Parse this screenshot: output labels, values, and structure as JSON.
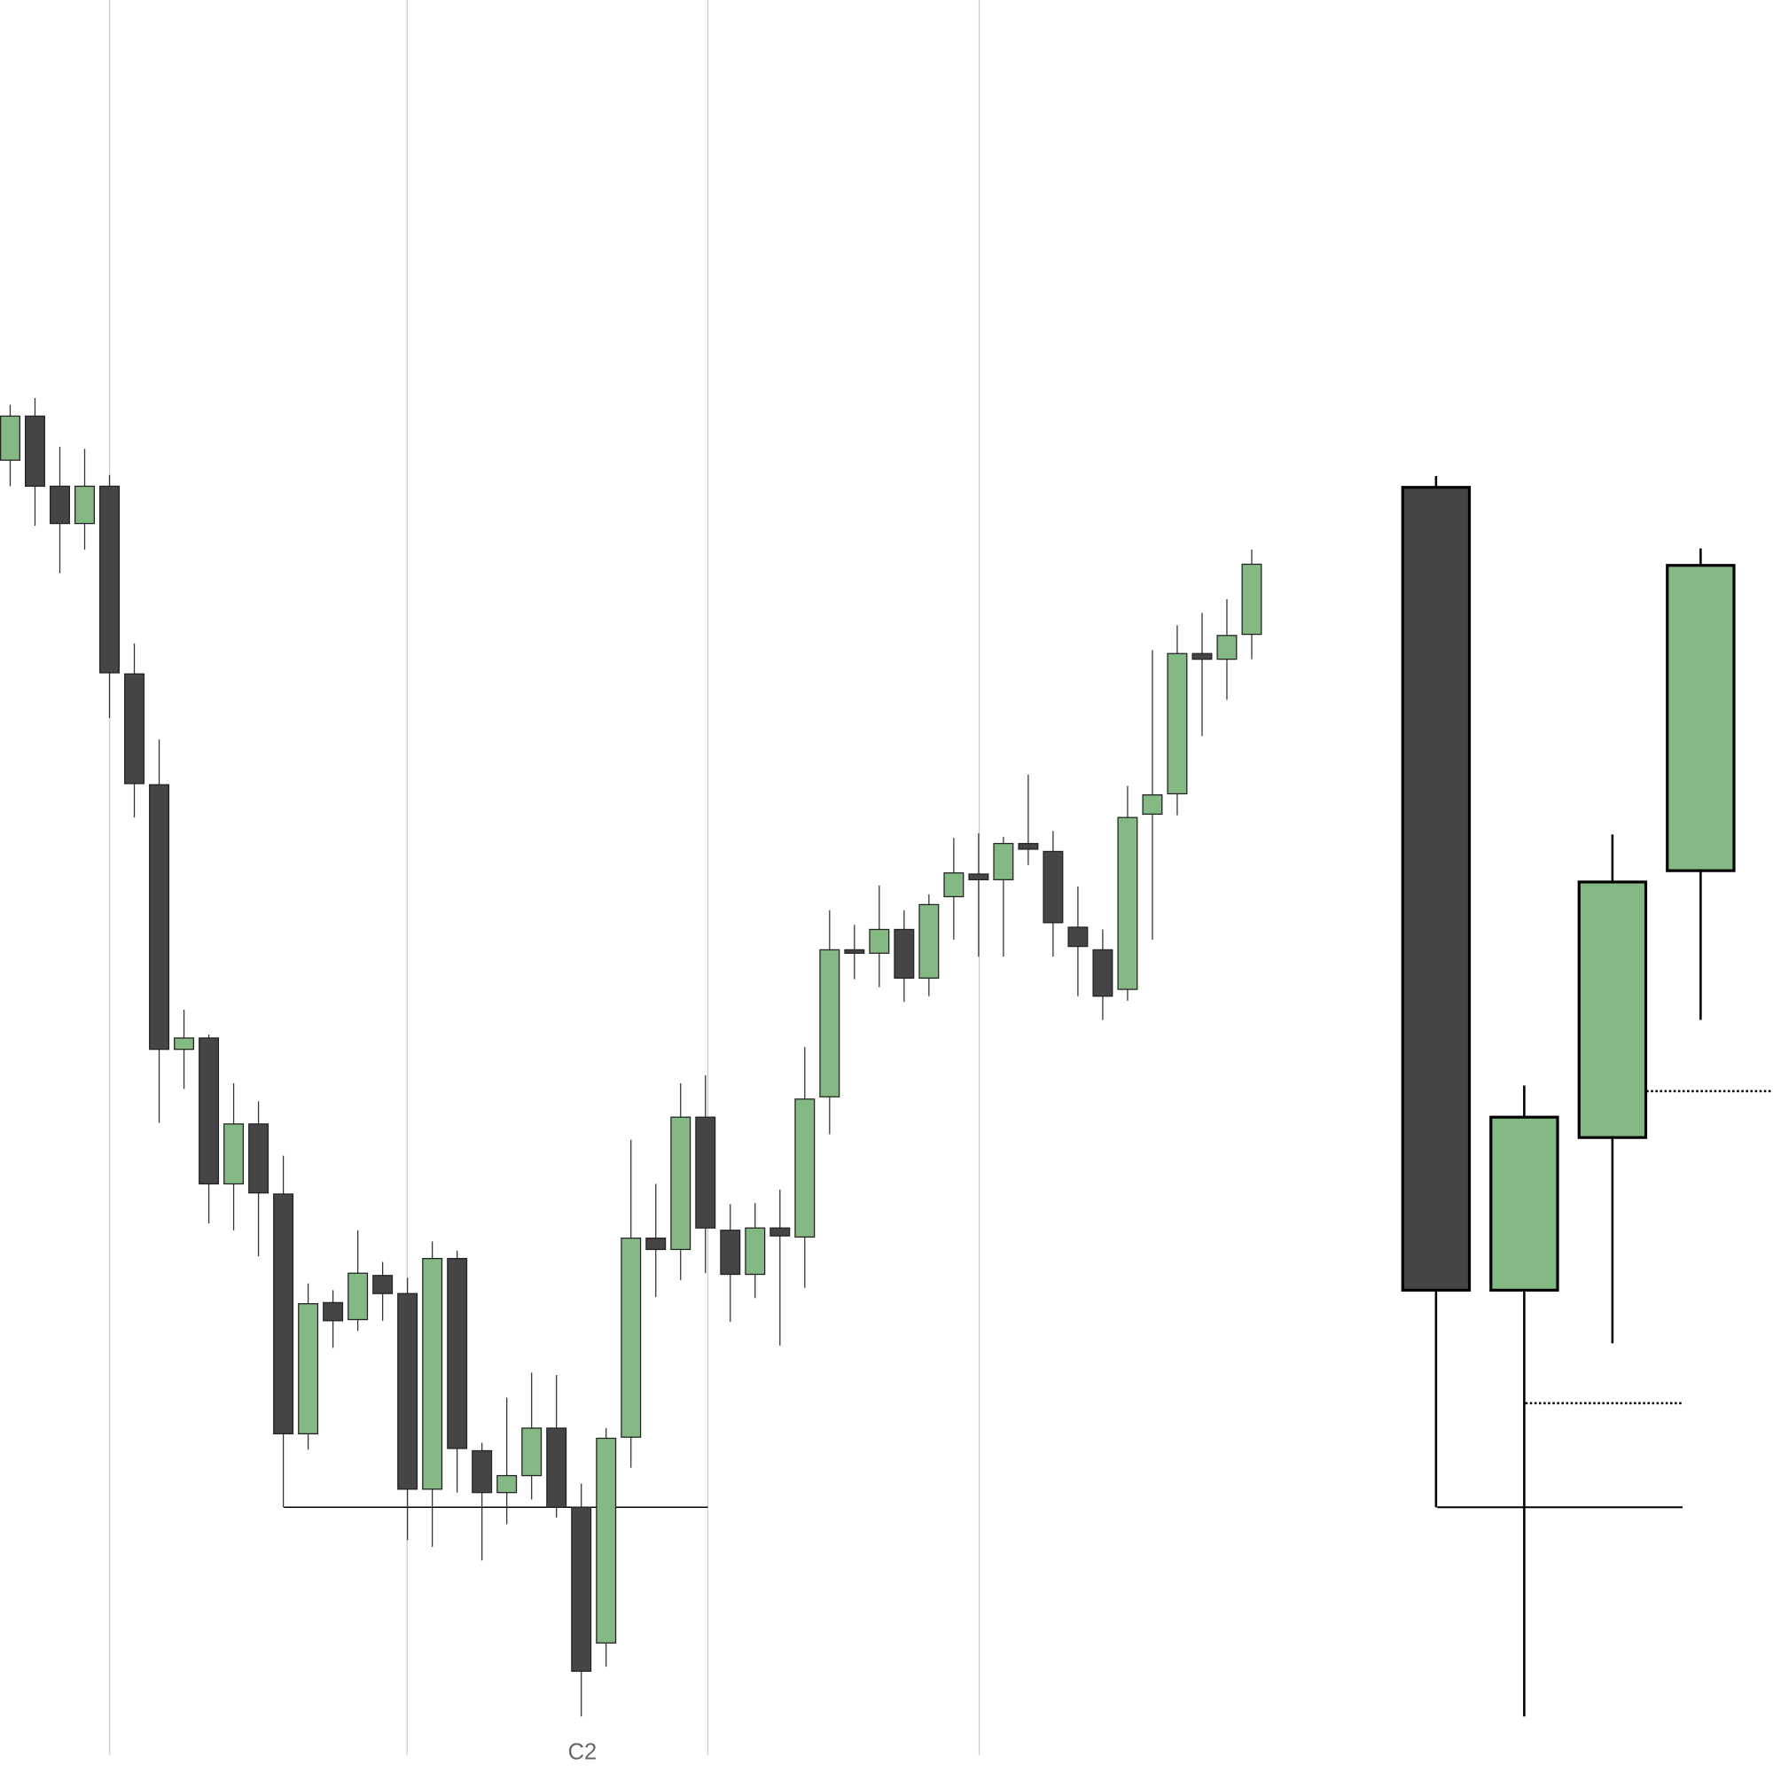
{
  "chart_data": {
    "type": "candlestick",
    "title": "",
    "xlabel": "",
    "ylabel": "",
    "grid": "vertical",
    "colors": {
      "bull": "#84b984",
      "bear": "#454545",
      "outline": "#000000",
      "grid": "#cccccc"
    },
    "annotation": "C2",
    "level": 100.0,
    "candles": [
      {
        "o": 192.6,
        "h": 197.5,
        "l": 190.3,
        "c": 196.5
      },
      {
        "o": 196.5,
        "h": 198.1,
        "l": 186.8,
        "c": 190.3
      },
      {
        "o": 190.3,
        "h": 193.8,
        "l": 182.6,
        "c": 187.0
      },
      {
        "o": 187.0,
        "h": 193.6,
        "l": 184.7,
        "c": 190.3
      },
      {
        "o": 190.3,
        "h": 191.3,
        "l": 169.8,
        "c": 173.8
      },
      {
        "o": 173.7,
        "h": 176.4,
        "l": 161.0,
        "c": 164.0
      },
      {
        "o": 163.9,
        "h": 167.9,
        "l": 134.0,
        "c": 140.5
      },
      {
        "o": 140.5,
        "h": 144.0,
        "l": 137.0,
        "c": 141.5
      },
      {
        "o": 141.5,
        "h": 141.8,
        "l": 125.1,
        "c": 128.6
      },
      {
        "o": 128.6,
        "h": 137.5,
        "l": 124.5,
        "c": 133.9
      },
      {
        "o": 133.9,
        "h": 135.9,
        "l": 122.2,
        "c": 127.8
      },
      {
        "o": 127.7,
        "h": 131.1,
        "l": 100.0,
        "c": 106.5
      },
      {
        "o": 106.5,
        "h": 119.8,
        "l": 105.1,
        "c": 118.0
      },
      {
        "o": 118.1,
        "h": 119.2,
        "l": 114.1,
        "c": 116.5
      },
      {
        "o": 116.6,
        "h": 124.5,
        "l": 115.6,
        "c": 120.7
      },
      {
        "o": 120.5,
        "h": 121.7,
        "l": 116.5,
        "c": 118.9
      },
      {
        "o": 118.9,
        "h": 120.3,
        "l": 97.1,
        "c": 101.6
      },
      {
        "o": 101.6,
        "h": 123.5,
        "l": 96.5,
        "c": 122.0
      },
      {
        "o": 122.0,
        "h": 122.7,
        "l": 101.3,
        "c": 105.2
      },
      {
        "o": 105.0,
        "h": 105.7,
        "l": 95.3,
        "c": 101.3
      },
      {
        "o": 101.3,
        "h": 109.7,
        "l": 98.5,
        "c": 102.8
      },
      {
        "o": 102.8,
        "h": 111.9,
        "l": 100.7,
        "c": 107.0
      },
      {
        "o": 107.0,
        "h": 111.7,
        "l": 99.1,
        "c": 100.0
      },
      {
        "o": 100.0,
        "h": 102.1,
        "l": 81.5,
        "c": 85.5
      },
      {
        "o": 88.0,
        "h": 107.0,
        "l": 85.9,
        "c": 106.1
      },
      {
        "o": 106.2,
        "h": 132.5,
        "l": 103.5,
        "c": 123.8
      },
      {
        "o": 123.8,
        "h": 128.6,
        "l": 118.6,
        "c": 122.8
      },
      {
        "o": 122.8,
        "h": 137.5,
        "l": 120.1,
        "c": 134.5
      },
      {
        "o": 134.5,
        "h": 138.2,
        "l": 120.7,
        "c": 124.7
      },
      {
        "o": 124.5,
        "h": 126.8,
        "l": 116.4,
        "c": 120.6
      },
      {
        "o": 120.6,
        "h": 126.9,
        "l": 118.5,
        "c": 124.7
      },
      {
        "o": 124.7,
        "h": 128.1,
        "l": 114.3,
        "c": 124.0
      },
      {
        "o": 123.9,
        "h": 140.7,
        "l": 119.4,
        "c": 136.1
      },
      {
        "o": 136.3,
        "h": 152.8,
        "l": 133.0,
        "c": 149.3
      },
      {
        "o": 149.3,
        "h": 151.5,
        "l": 146.7,
        "c": 149.0
      },
      {
        "o": 149.0,
        "h": 155.0,
        "l": 146.0,
        "c": 151.1
      },
      {
        "o": 151.1,
        "h": 152.8,
        "l": 144.7,
        "c": 146.8
      },
      {
        "o": 146.8,
        "h": 154.2,
        "l": 145.2,
        "c": 153.3
      },
      {
        "o": 154.0,
        "h": 159.2,
        "l": 150.2,
        "c": 156.1
      },
      {
        "o": 156.0,
        "h": 159.6,
        "l": 148.7,
        "c": 155.5
      },
      {
        "o": 155.5,
        "h": 159.3,
        "l": 148.7,
        "c": 158.7
      },
      {
        "o": 158.7,
        "h": 164.8,
        "l": 156.8,
        "c": 158.2
      },
      {
        "o": 158.0,
        "h": 159.8,
        "l": 148.7,
        "c": 151.7
      },
      {
        "o": 151.3,
        "h": 154.9,
        "l": 145.2,
        "c": 149.6
      },
      {
        "o": 149.3,
        "h": 151.1,
        "l": 143.1,
        "c": 145.2
      },
      {
        "o": 145.8,
        "h": 163.8,
        "l": 144.8,
        "c": 161.0
      },
      {
        "o": 161.3,
        "h": 175.8,
        "l": 150.2,
        "c": 163.0
      },
      {
        "o": 163.1,
        "h": 178.0,
        "l": 161.2,
        "c": 175.5
      },
      {
        "o": 175.5,
        "h": 179.1,
        "l": 168.2,
        "c": 175.0
      },
      {
        "o": 175.0,
        "h": 180.3,
        "l": 171.4,
        "c": 177.1
      },
      {
        "o": 177.2,
        "h": 184.7,
        "l": 175.0,
        "c": 183.4
      }
    ],
    "detail_candles": [
      {
        "o": 190.2,
        "h": 191.2,
        "l": 100.0,
        "c": 119.2
      },
      {
        "o": 119.2,
        "h": 137.3,
        "l": 81.5,
        "c": 134.5
      },
      {
        "o": 132.7,
        "h": 159.5,
        "l": 114.5,
        "c": 155.3
      },
      {
        "o": 156.3,
        "h": 184.8,
        "l": 143.1,
        "c": 183.3
      }
    ],
    "detail_levels": [
      {
        "value": 100.0,
        "style": "solid"
      },
      {
        "value": 109.2,
        "style": "dotted"
      },
      {
        "value": 136.8,
        "style": "dotted"
      }
    ]
  }
}
